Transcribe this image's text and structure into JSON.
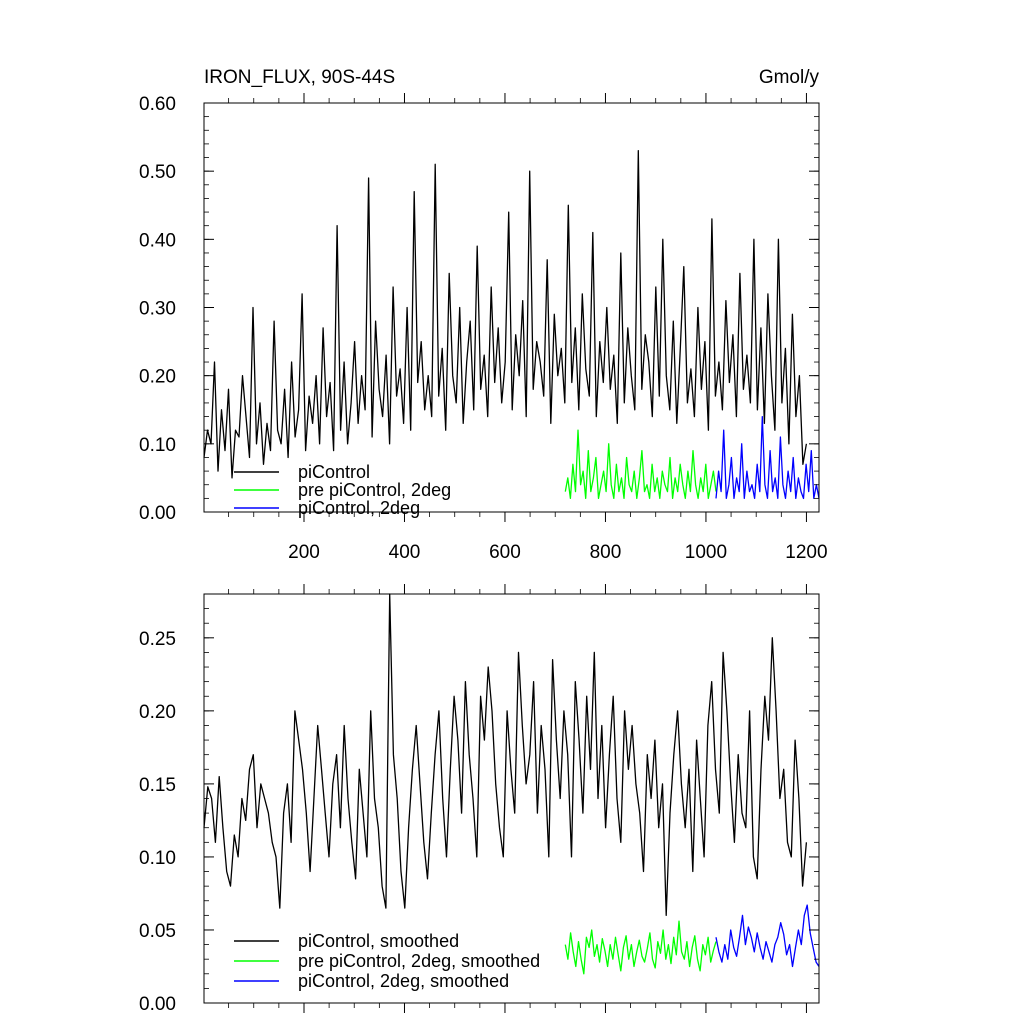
{
  "chart_data": [
    {
      "type": "line",
      "title": "IRON_FLUX, 90S-44S",
      "units": "Gmol/y",
      "xlim": [
        1,
        1225
      ],
      "ylim": [
        0,
        0.6
      ],
      "x_tick_labels": [
        "200",
        "400",
        "600",
        "800",
        "1000",
        "1200"
      ],
      "y_tick_labels": [
        "0.00",
        "0.10",
        "0.20",
        "0.30",
        "0.40",
        "0.50",
        "0.60"
      ],
      "legend_position": "bottom-left",
      "series": [
        {
          "name": "piControl",
          "color": "#000000",
          "x_range": [
            1,
            1200
          ],
          "values": [
            0.08,
            0.12,
            0.1,
            0.22,
            0.06,
            0.15,
            0.09,
            0.18,
            0.05,
            0.12,
            0.11,
            0.2,
            0.14,
            0.08,
            0.3,
            0.1,
            0.16,
            0.07,
            0.13,
            0.09,
            0.28,
            0.12,
            0.1,
            0.18,
            0.08,
            0.22,
            0.11,
            0.15,
            0.32,
            0.09,
            0.17,
            0.13,
            0.2,
            0.1,
            0.27,
            0.14,
            0.19,
            0.09,
            0.42,
            0.12,
            0.22,
            0.1,
            0.16,
            0.25,
            0.13,
            0.2,
            0.15,
            0.49,
            0.11,
            0.28,
            0.18,
            0.14,
            0.23,
            0.1,
            0.33,
            0.17,
            0.21,
            0.13,
            0.3,
            0.12,
            0.47,
            0.19,
            0.25,
            0.15,
            0.2,
            0.14,
            0.51,
            0.17,
            0.24,
            0.12,
            0.35,
            0.2,
            0.16,
            0.3,
            0.13,
            0.22,
            0.28,
            0.15,
            0.39,
            0.18,
            0.23,
            0.14,
            0.33,
            0.19,
            0.27,
            0.16,
            0.22,
            0.44,
            0.15,
            0.26,
            0.2,
            0.31,
            0.14,
            0.5,
            0.18,
            0.25,
            0.22,
            0.17,
            0.37,
            0.13,
            0.29,
            0.2,
            0.24,
            0.16,
            0.45,
            0.19,
            0.27,
            0.15,
            0.32,
            0.21,
            0.17,
            0.41,
            0.14,
            0.25,
            0.19,
            0.3,
            0.18,
            0.23,
            0.13,
            0.38,
            0.16,
            0.27,
            0.2,
            0.15,
            0.53,
            0.18,
            0.26,
            0.22,
            0.14,
            0.33,
            0.17,
            0.4,
            0.2,
            0.15,
            0.28,
            0.13,
            0.24,
            0.36,
            0.16,
            0.21,
            0.14,
            0.3,
            0.18,
            0.25,
            0.12,
            0.43,
            0.17,
            0.22,
            0.15,
            0.31,
            0.19,
            0.26,
            0.14,
            0.35,
            0.18,
            0.23,
            0.16,
            0.4,
            0.15,
            0.27,
            0.13,
            0.32,
            0.2,
            0.12,
            0.4,
            0.16,
            0.24,
            0.1,
            0.29,
            0.14,
            0.2,
            0.07,
            0.1
          ]
        },
        {
          "name": "pre piControl, 2deg",
          "color": "#00ff00",
          "x_range": [
            720,
            1020
          ],
          "values": [
            0.03,
            0.05,
            0.02,
            0.07,
            0.03,
            0.12,
            0.04,
            0.06,
            0.02,
            0.09,
            0.03,
            0.05,
            0.08,
            0.02,
            0.04,
            0.06,
            0.03,
            0.1,
            0.04,
            0.02,
            0.07,
            0.03,
            0.05,
            0.02,
            0.08,
            0.04,
            0.03,
            0.06,
            0.02,
            0.05,
            0.09,
            0.03,
            0.04,
            0.02,
            0.07,
            0.03,
            0.05,
            0.02,
            0.06,
            0.04,
            0.03,
            0.08,
            0.02,
            0.05,
            0.03,
            0.07,
            0.04,
            0.02,
            0.06,
            0.03,
            0.09,
            0.04,
            0.02,
            0.05,
            0.03,
            0.07,
            0.02,
            0.04,
            0.06,
            0.03
          ]
        },
        {
          "name": "piControl, 2deg",
          "color": "#0000ff",
          "x_range": [
            1020,
            1225
          ],
          "values": [
            0.02,
            0.06,
            0.03,
            0.12,
            0.02,
            0.04,
            0.08,
            0.02,
            0.05,
            0.03,
            0.1,
            0.02,
            0.06,
            0.03,
            0.04,
            0.02,
            0.07,
            0.03,
            0.14,
            0.04,
            0.02,
            0.09,
            0.03,
            0.05,
            0.02,
            0.11,
            0.04,
            0.02,
            0.06,
            0.03,
            0.08,
            0.02,
            0.05,
            0.03,
            0.02,
            0.07,
            0.03,
            0.09,
            0.02,
            0.04,
            0.02
          ]
        }
      ]
    },
    {
      "type": "line",
      "xlim": [
        1,
        1225
      ],
      "ylim": [
        0,
        0.28
      ],
      "y_tick_labels": [
        "0.00",
        "0.05",
        "0.10",
        "0.15",
        "0.20",
        "0.25"
      ],
      "legend_position": "bottom-left",
      "series": [
        {
          "name": "piControl, smoothed",
          "color": "#000000",
          "x_range": [
            1,
            1200
          ],
          "values": [
            0.12,
            0.148,
            0.14,
            0.11,
            0.155,
            0.12,
            0.09,
            0.08,
            0.115,
            0.1,
            0.14,
            0.125,
            0.16,
            0.17,
            0.12,
            0.15,
            0.14,
            0.13,
            0.11,
            0.1,
            0.065,
            0.13,
            0.15,
            0.11,
            0.2,
            0.18,
            0.16,
            0.13,
            0.09,
            0.14,
            0.19,
            0.16,
            0.13,
            0.1,
            0.15,
            0.17,
            0.12,
            0.19,
            0.14,
            0.11,
            0.085,
            0.16,
            0.13,
            0.1,
            0.2,
            0.14,
            0.12,
            0.08,
            0.065,
            0.28,
            0.17,
            0.14,
            0.09,
            0.065,
            0.12,
            0.16,
            0.19,
            0.15,
            0.11,
            0.085,
            0.13,
            0.17,
            0.2,
            0.14,
            0.1,
            0.16,
            0.21,
            0.18,
            0.13,
            0.22,
            0.17,
            0.14,
            0.1,
            0.21,
            0.18,
            0.23,
            0.2,
            0.15,
            0.12,
            0.1,
            0.2,
            0.16,
            0.13,
            0.24,
            0.19,
            0.15,
            0.17,
            0.22,
            0.13,
            0.19,
            0.16,
            0.1,
            0.235,
            0.18,
            0.14,
            0.2,
            0.17,
            0.1,
            0.22,
            0.18,
            0.13,
            0.21,
            0.16,
            0.24,
            0.14,
            0.19,
            0.12,
            0.17,
            0.21,
            0.14,
            0.11,
            0.2,
            0.16,
            0.19,
            0.15,
            0.13,
            0.09,
            0.17,
            0.14,
            0.18,
            0.12,
            0.15,
            0.06,
            0.13,
            0.17,
            0.2,
            0.15,
            0.12,
            0.16,
            0.09,
            0.18,
            0.14,
            0.1,
            0.19,
            0.22,
            0.16,
            0.13,
            0.24,
            0.2,
            0.15,
            0.11,
            0.17,
            0.13,
            0.12,
            0.2,
            0.1,
            0.085,
            0.16,
            0.21,
            0.18,
            0.25,
            0.2,
            0.14,
            0.16,
            0.11,
            0.1,
            0.18,
            0.14,
            0.08,
            0.11
          ]
        },
        {
          "name": "pre piControl, 2deg, smoothed",
          "color": "#00ff00",
          "x_range": [
            720,
            1020
          ],
          "values": [
            0.04,
            0.03,
            0.048,
            0.035,
            0.025,
            0.042,
            0.03,
            0.02,
            0.045,
            0.038,
            0.05,
            0.032,
            0.04,
            0.028,
            0.044,
            0.036,
            0.025,
            0.04,
            0.03,
            0.045,
            0.033,
            0.022,
            0.038,
            0.046,
            0.03,
            0.04,
            0.025,
            0.035,
            0.043,
            0.032,
            0.028,
            0.037,
            0.048,
            0.03,
            0.024,
            0.042,
            0.034,
            0.05,
            0.03,
            0.04,
            0.027,
            0.045,
            0.033,
            0.056,
            0.035,
            0.03,
            0.042,
            0.025,
            0.038,
            0.046,
            0.03,
            0.022,
            0.04,
            0.033,
            0.045,
            0.028,
            0.036,
            0.042
          ]
        },
        {
          "name": "piControl, 2deg, smoothed",
          "color": "#0000ff",
          "x_range": [
            1020,
            1225
          ],
          "values": [
            0.045,
            0.035,
            0.028,
            0.04,
            0.03,
            0.05,
            0.038,
            0.032,
            0.045,
            0.06,
            0.04,
            0.052,
            0.045,
            0.035,
            0.048,
            0.038,
            0.03,
            0.042,
            0.035,
            0.028,
            0.04,
            0.045,
            0.055,
            0.047,
            0.033,
            0.04,
            0.025,
            0.038,
            0.05,
            0.04,
            0.06,
            0.067,
            0.048,
            0.038,
            0.028,
            0.025
          ]
        }
      ]
    }
  ]
}
